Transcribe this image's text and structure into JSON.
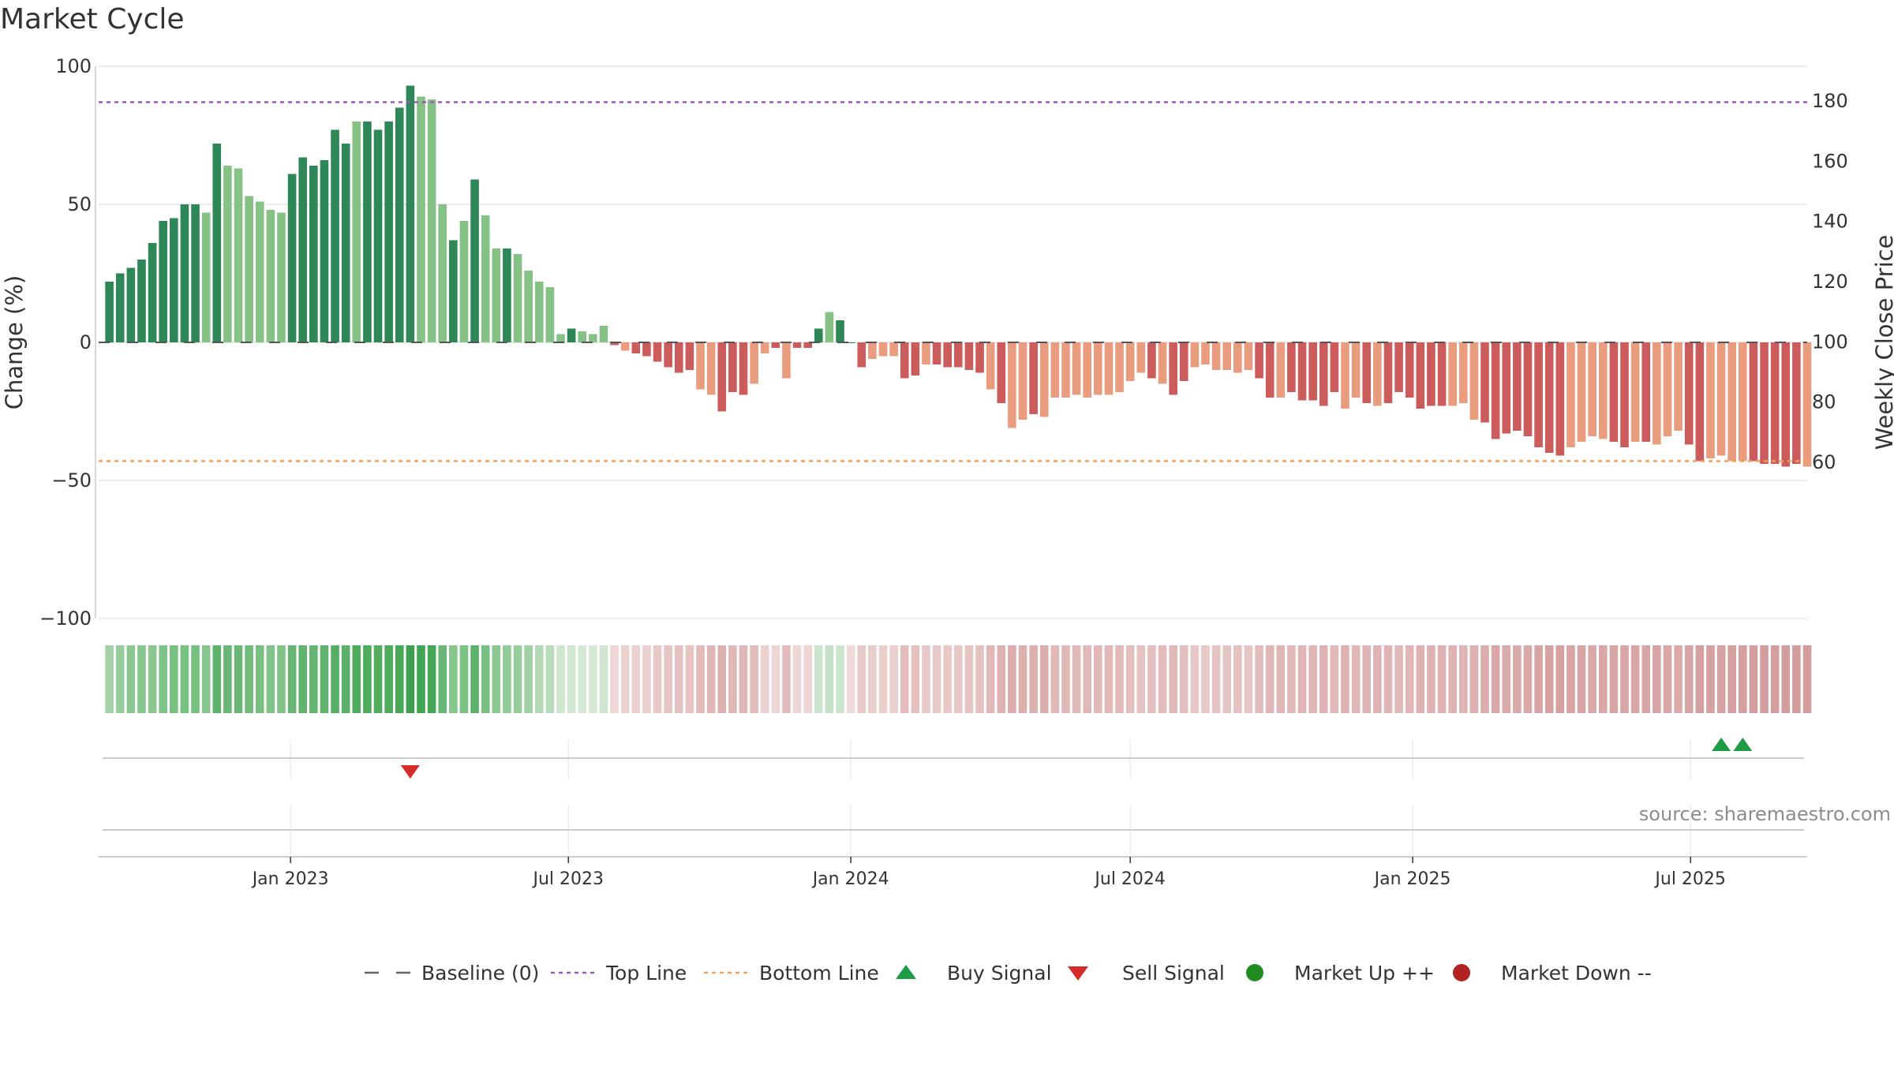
{
  "title": "Market Cycle",
  "source": "source: sharemaestro.com",
  "colors": {
    "up_dark": "#2e8757",
    "up_light": "#86c186",
    "down_dark": "#cc5c5c",
    "down_light": "#ea9c7f",
    "top_line": "#9b59b6",
    "bottom_line": "#f0a058",
    "buy": "#1f9b45",
    "sell": "#d62b2b",
    "market_up": "#228b22",
    "market_down": "#b22222"
  },
  "chart_data": {
    "type": "bar",
    "ylabel": "Change (%)",
    "y2label": "Weekly Close Price",
    "ylim": [
      -100,
      100
    ],
    "yticks": [
      100,
      50,
      0,
      -50,
      -100
    ],
    "y2lim": [
      45,
      195
    ],
    "y2ticks": [
      180,
      160,
      140,
      120,
      100,
      80,
      60
    ],
    "x_start": "2022-09-05",
    "x_range": [
      "2022-08-29",
      "2025-09-15"
    ],
    "x_step_days": 7,
    "xticks": [
      {
        "date": "2023-01-01",
        "label": "Jan 2023"
      },
      {
        "date": "2023-07-01",
        "label": "Jul 2023"
      },
      {
        "date": "2024-01-01",
        "label": "Jan 2024"
      },
      {
        "date": "2024-07-01",
        "label": "Jul 2024"
      },
      {
        "date": "2025-01-01",
        "label": "Jan 2025"
      },
      {
        "date": "2025-07-01",
        "label": "Jul 2025"
      }
    ],
    "top_line": 87,
    "bottom_line": -43,
    "baseline": 0,
    "values": [
      22,
      25,
      27,
      30,
      36,
      44,
      45,
      50,
      50,
      47,
      72,
      64,
      63,
      53,
      51,
      48,
      47,
      61,
      67,
      64,
      66,
      77,
      72,
      80,
      80,
      77,
      80,
      85,
      93,
      89,
      88,
      50,
      37,
      44,
      59,
      46,
      34,
      34,
      32,
      26,
      22,
      20,
      3,
      5,
      4,
      3,
      6,
      -1,
      -3,
      -4,
      -5,
      -7,
      -9,
      -11,
      -10,
      -17,
      -19,
      -25,
      -18,
      -19,
      -15,
      -4,
      -2,
      -13,
      -2,
      -2,
      5,
      11,
      8,
      0,
      -9,
      -6,
      -5,
      -5,
      -13,
      -12,
      -8,
      -8,
      -9,
      -9,
      -10,
      -11,
      -17,
      -22,
      -31,
      -28,
      -26,
      -27,
      -20,
      -20,
      -19,
      -20,
      -19,
      -19,
      -18,
      -14,
      -11,
      -13,
      -15,
      -19,
      -14,
      -9,
      -8,
      -10,
      -10,
      -11,
      -10,
      -13,
      -20,
      -20,
      -18,
      -21,
      -21,
      -23,
      -18,
      -24,
      -20,
      -22,
      -23,
      -22,
      -18,
      -20,
      -24,
      -23,
      -23,
      -23,
      -22,
      -28,
      -29,
      -35,
      -33,
      -32,
      -34,
      -38,
      -40,
      -41,
      -38,
      -36,
      -34,
      -35,
      -36,
      -38,
      -36,
      -36,
      -37,
      -34,
      -32,
      -37,
      -43,
      -42,
      -41,
      -43,
      -43,
      -43,
      -44,
      -44,
      -45,
      -44,
      -45
    ],
    "shades": "DDDDDDDDDLDLLLLLLDDDDDDLDDDDDLLLDLDLLDLLLLLDLLLDLDDDDDDLLDDDLLDLDDDLDDDLLLDDLDDDDDLDLLDLLLLLLLLLLDLDDLLLLLLDDLDDDDDLLDLDDDDDDLLLDDDDDDDDLLLLDDLDLLLDDLLLLDDDDDLLLLDDDLDDLLL",
    "strip_colors": [
      "#a6d2a9",
      "#96cd9b",
      "#8cc892",
      "#87c68e",
      "#8bc691",
      "#7ec387",
      "#76c180",
      "#76c180",
      "#76c180",
      "#87c68e",
      "#5fb26c",
      "#6ab676",
      "#6cb778",
      "#72bb7c",
      "#79bf82",
      "#81c388",
      "#81c388",
      "#67b572",
      "#61b26d",
      "#67b572",
      "#61b26d",
      "#55ae63",
      "#5cb16a",
      "#4fab5e",
      "#4fab5e",
      "#52ad60",
      "#4fab5e",
      "#48a858",
      "#3f9f50",
      "#42a553",
      "#45a756",
      "#6ab676",
      "#86c68d",
      "#7ac184",
      "#5eb26b",
      "#79bf82",
      "#8cc892",
      "#92cb97",
      "#96cd9b",
      "#a3d1a6",
      "#b4d9b6",
      "#b9dcba",
      "#cfe6d0",
      "#d1e7d2",
      "#d3e8d4",
      "#d5e9d6",
      "#d0e6d0",
      "#efd6d6",
      "#ecd1d1",
      "#ecd1d1",
      "#ebcfcf",
      "#e8c9c9",
      "#e6c5c5",
      "#e5c2c2",
      "#e6c4c4",
      "#e2baba",
      "#e0b6b6",
      "#ddb0b0",
      "#e1b8b8",
      "#e0b6b6",
      "#e3bcbc",
      "#ecd1d1",
      "#efd6d6",
      "#e3bdbd",
      "#efd6d6",
      "#efd6d6",
      "#cde5ce",
      "#c5e2c6",
      "#cbe4cc",
      "#f0d9d9",
      "#e8c9c9",
      "#eacccc",
      "#ebcfcf",
      "#ebcfcf",
      "#e3bdbd",
      "#e4c0c0",
      "#e8c9c9",
      "#e8c9c9",
      "#e7c7c7",
      "#e7c7c7",
      "#e6c5c5",
      "#e5c2c2",
      "#e1b8b8",
      "#deb2b2",
      "#dcacac",
      "#ddafaf",
      "#deb1b1",
      "#dcadad",
      "#e1b8b8",
      "#e1b8b8",
      "#e1b9b9",
      "#e1b8b8",
      "#e1b9b9",
      "#e1b9b9",
      "#e2baba",
      "#e4bfbf",
      "#e6c4c4",
      "#e4bfbf",
      "#e3bdbd",
      "#e1b9b9",
      "#e4bfbf",
      "#e7c7c7",
      "#e8c9c9",
      "#e6c5c5",
      "#e6c5c5",
      "#e5c2c2",
      "#e6c5c5",
      "#e3bdbd",
      "#e0b6b6",
      "#e0b6b6",
      "#e1b9b9",
      "#e0b6b6",
      "#e0b6b6",
      "#dfb3b3",
      "#e1b9b9",
      "#deb2b2",
      "#e0b6b6",
      "#dfb4b4",
      "#dfb3b3",
      "#dfb4b4",
      "#e1b9b9",
      "#e0b6b6",
      "#deb2b2",
      "#dfb3b3",
      "#dfb3b3",
      "#dfb3b3",
      "#dfb4b4",
      "#ddafaf",
      "#dcadad",
      "#d9a7a7",
      "#daa9a9",
      "#dbaaaa",
      "#daa8a8",
      "#d8a4a4",
      "#d7a2a2",
      "#d7a1a1",
      "#d8a4a4",
      "#d9a6a6",
      "#daa8a8",
      "#d9a7a7",
      "#d9a6a6",
      "#d8a4a4",
      "#d9a6a6",
      "#d9a6a6",
      "#d8a5a5",
      "#daa8a8",
      "#dbabab",
      "#d8a5a5",
      "#d59f9f",
      "#d6a0a0",
      "#d6a1a1",
      "#d59f9f",
      "#d59f9f",
      "#d59f9f",
      "#d59e9e",
      "#d59e9e",
      "#d49d9d",
      "#d59e9e",
      "#d49d9d"
    ],
    "buy_signals": [
      150,
      152
    ],
    "sell_signals": [
      28
    ],
    "legend": [
      {
        "key": "baseline",
        "label": "Baseline (0)"
      },
      {
        "key": "top",
        "label": "Top Line"
      },
      {
        "key": "bottom",
        "label": "Bottom Line"
      },
      {
        "key": "buy",
        "label": "Buy Signal"
      },
      {
        "key": "sell",
        "label": "Sell Signal"
      },
      {
        "key": "up",
        "label": "Market Up ++"
      },
      {
        "key": "down",
        "label": "Market Down --"
      }
    ]
  }
}
